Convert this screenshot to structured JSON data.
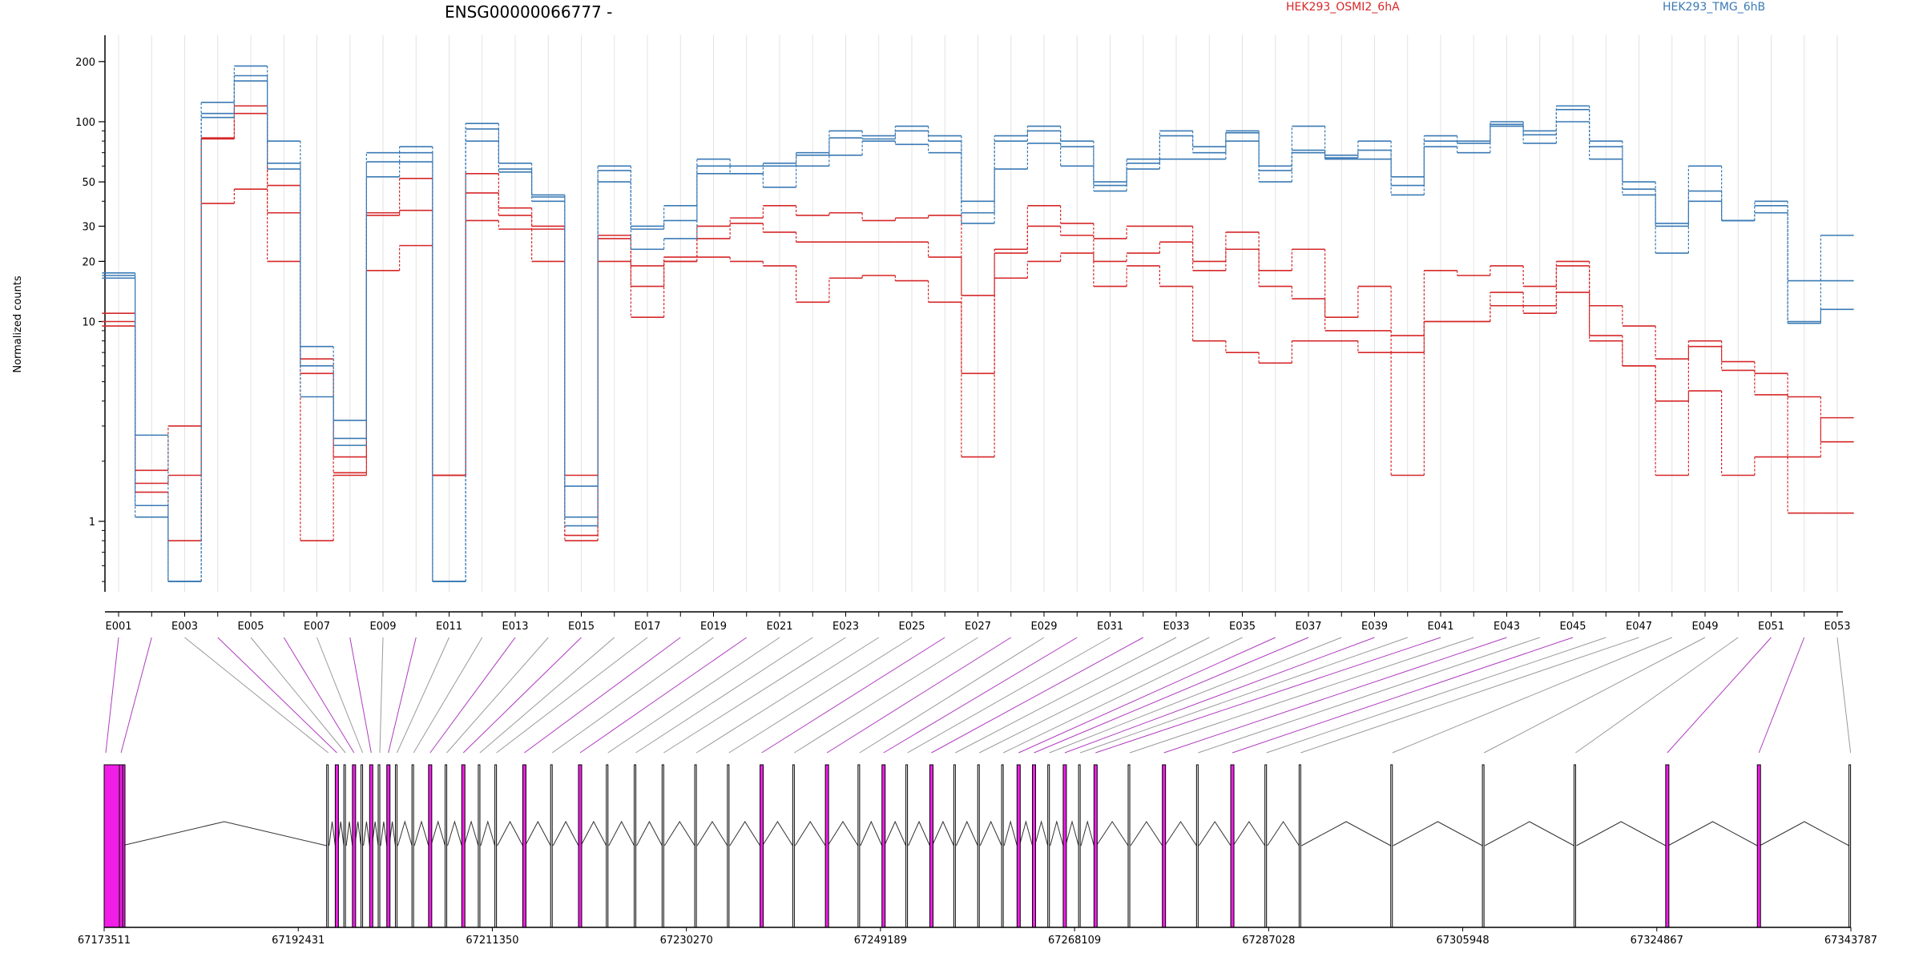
{
  "chart_data": {
    "type": "line",
    "title": "ENSG00000066777 -",
    "ylabel": "Normalized counts",
    "xlabel": "",
    "yscale": "log",
    "ylim": [
      0.45,
      240
    ],
    "grid": "vertical",
    "legend": [
      {
        "name": "HEK293_OSMI2_6hA",
        "color": "#d62728"
      },
      {
        "name": "HEK293_TMG_6hB",
        "color": "#3a7ab5"
      }
    ],
    "y_ticks": [
      1,
      10,
      20,
      30,
      50,
      100,
      200
    ],
    "y_tick_labels": [
      "1",
      "10",
      "20",
      "30",
      "50",
      "100",
      "200"
    ],
    "exons": [
      "E001",
      "E002",
      "E003",
      "E004",
      "E005",
      "E006",
      "E007",
      "E008",
      "E009",
      "E010",
      "E011",
      "E012",
      "E013",
      "E014",
      "E015",
      "E016",
      "E017",
      "E018",
      "E019",
      "E020",
      "E021",
      "E022",
      "E023",
      "E024",
      "E025",
      "E026",
      "E027",
      "E028",
      "E029",
      "E030",
      "E031",
      "E032",
      "E033",
      "E034",
      "E035",
      "E036",
      "E037",
      "E038",
      "E039",
      "E040",
      "E041",
      "E042",
      "E043",
      "E044",
      "E045",
      "E046",
      "E047",
      "E048",
      "E049",
      "E050",
      "E051",
      "E052",
      "E053"
    ],
    "x_tick_labels": [
      "E001",
      "E003",
      "E005",
      "E007",
      "E009",
      "E011",
      "E013",
      "E015",
      "E017",
      "E019",
      "E021",
      "E023",
      "E025",
      "E027",
      "E029",
      "E031",
      "E033",
      "E035",
      "E037",
      "E039",
      "E041",
      "E043",
      "E045",
      "E047",
      "E049",
      "E051",
      "E053"
    ],
    "series": [
      {
        "group": "HEK293_OSMI2_6hA",
        "color": "#d62728",
        "values": [
          11,
          1.8,
          3.0,
          82,
          120,
          48,
          6.5,
          2.1,
          35,
          52,
          1.7,
          55,
          37,
          29,
          0.85,
          27,
          19,
          21,
          30,
          33,
          38,
          34,
          35,
          32,
          33,
          34,
          13.5,
          23,
          38,
          31,
          26,
          30,
          30,
          20,
          28,
          18,
          23,
          10.5,
          15,
          8.5,
          18,
          17,
          19,
          15,
          20,
          12,
          9.5,
          6.5,
          8,
          6.3,
          5.5,
          2.1,
          3.3
        ]
      },
      {
        "group": "HEK293_OSMI2_6hA",
        "color": "#d62728",
        "values": [
          10,
          1.55,
          1.7,
          83,
          110,
          35,
          5.5,
          1.75,
          34,
          36,
          1.7,
          44,
          34,
          30,
          1.7,
          26,
          15,
          20,
          26,
          31,
          28,
          25,
          25,
          25,
          25,
          21,
          5.5,
          22,
          30,
          27,
          20,
          22,
          25,
          18,
          23,
          15,
          13,
          9,
          9,
          7,
          10,
          10,
          14,
          12,
          19,
          8.5,
          6,
          4,
          7.5,
          5.7,
          4.3,
          4.2,
          2.5
        ]
      },
      {
        "group": "HEK293_OSMI2_6hA",
        "color": "#d62728",
        "values": [
          9.5,
          1.4,
          0.8,
          39,
          46,
          20,
          0.8,
          1.7,
          18,
          24,
          1.7,
          32,
          29,
          20,
          0.8,
          20,
          10.5,
          20,
          21,
          20,
          19,
          12.5,
          16.5,
          17,
          16,
          12.5,
          2.1,
          16.5,
          20,
          22,
          15,
          19,
          15,
          8,
          7,
          6.2,
          8,
          8,
          7,
          1.7,
          10,
          10,
          12,
          11,
          14,
          8,
          6,
          1.7,
          4.5,
          1.7,
          2.1,
          1.1,
          1.1
        ]
      },
      {
        "group": "HEK293_TMG_6hB",
        "color": "#3a7ab5",
        "values": [
          17.5,
          2.7,
          0.5,
          125,
          190,
          80,
          7.5,
          3.2,
          70,
          75,
          0.5,
          98,
          62,
          43,
          1.05,
          60,
          30,
          38,
          65,
          60,
          62,
          70,
          90,
          85,
          95,
          85,
          40,
          85,
          95,
          80,
          50,
          65,
          90,
          75,
          90,
          60,
          95,
          68,
          80,
          53,
          85,
          80,
          100,
          90,
          120,
          80,
          50,
          31,
          60,
          32,
          40,
          16,
          27
        ]
      },
      {
        "group": "HEK293_TMG_6hB",
        "color": "#3a7ab5",
        "values": [
          17,
          1.2,
          0.5,
          110,
          160,
          62,
          6,
          2.6,
          63,
          70,
          0.5,
          92,
          58,
          42,
          1.5,
          57,
          29,
          32,
          60,
          55,
          60,
          68,
          83,
          82,
          90,
          80,
          35,
          80,
          90,
          75,
          48,
          62,
          85,
          70,
          88,
          57,
          72,
          66,
          72,
          48,
          80,
          78,
          97,
          86,
          115,
          75,
          46,
          30,
          45,
          32,
          38,
          10,
          16
        ]
      },
      {
        "group": "HEK293_TMG_6hB",
        "color": "#3a7ab5",
        "values": [
          16.5,
          1.05,
          0.5,
          105,
          170,
          58,
          4.2,
          2.4,
          53,
          63,
          0.5,
          80,
          56,
          40,
          0.95,
          50,
          23,
          26,
          55,
          55,
          47,
          60,
          68,
          80,
          77,
          70,
          31,
          58,
          78,
          60,
          45,
          58,
          65,
          65,
          80,
          50,
          70,
          65,
          65,
          43,
          75,
          70,
          95,
          78,
          100,
          65,
          43,
          22,
          40,
          32,
          35,
          9.8,
          11.5
        ]
      }
    ],
    "genomic_axis": {
      "tick_labels": [
        "67173511",
        "67192431",
        "67211350",
        "67230270",
        "67249189",
        "67268109",
        "67287028",
        "67305948",
        "67324867",
        "67343787"
      ]
    }
  }
}
